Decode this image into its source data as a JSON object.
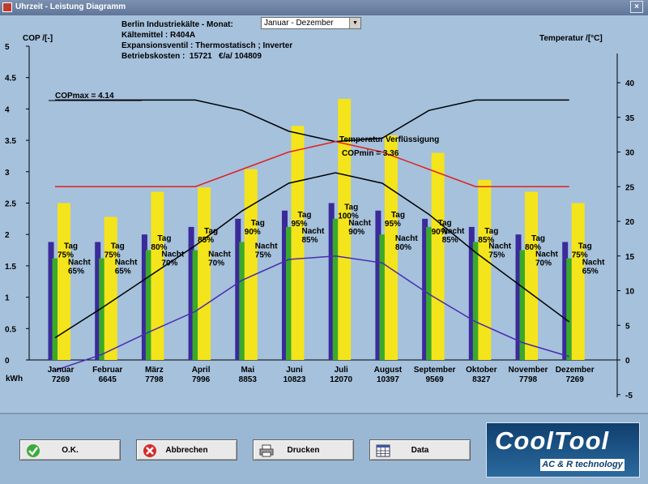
{
  "window": {
    "title": "Uhrzeit - Leistung Diagramm",
    "close": "×"
  },
  "info": {
    "line1": "Berlin Industriekälte - Monat:",
    "line2": "Kältemittel : R404A",
    "line3": "Expansionsventil : Thermostatisch ; Inverter",
    "line4": "Betriebskosten :  15721   €/a/ 104809"
  },
  "month_select": {
    "value": "Januar - Dezember"
  },
  "axes": {
    "left_title": "COP /[-]",
    "right_title": "Temperatur /[°C]",
    "kwh_label": "kWh"
  },
  "annotations": {
    "copmax": "COPmax =  4.14",
    "copmin": "COPmin =  3.36",
    "temp_cond": "Temperatur Verflüssigung"
  },
  "buttons": {
    "ok": "O.K.",
    "cancel": "Abbrechen",
    "print": "Drucken",
    "data": "Data"
  },
  "logo": {
    "title": "CoolTool",
    "subtitle": "AC & R technology"
  },
  "colors": {
    "purple": "#3a2a9a",
    "green": "#3aaa2a",
    "yellow": "#f4e41c",
    "red_line": "#e02020",
    "black_line": "#000000",
    "blue_line": "#4a2ab0"
  },
  "chart_data": {
    "type": "bar",
    "categories": [
      "Januar",
      "Februar",
      "März",
      "April",
      "Mai",
      "Juni",
      "Juli",
      "August",
      "September",
      "Oktober",
      "November",
      "Dezember"
    ],
    "kwh": [
      "7269",
      "6645",
      "7798",
      "7996",
      "8853",
      "10823",
      "12070",
      "10397",
      "9569",
      "8327",
      "7798",
      "7269"
    ],
    "left_axis": {
      "ticks": [
        "0",
        "0.5",
        "1",
        "1.5",
        "2",
        "2.5",
        "3",
        "3.5",
        "4",
        "4.5",
        "5"
      ],
      "ylim": [
        0,
        5
      ]
    },
    "right_axis": {
      "ticks": [
        "-5",
        "0",
        "5",
        "10",
        "15",
        "20",
        "25",
        "30",
        "35",
        "40"
      ],
      "ylim": [
        -5,
        40
      ]
    },
    "series": [
      {
        "values": [
          1.88,
          1.88,
          2.0,
          2.12,
          2.25,
          2.38,
          2.5,
          2.38,
          2.25,
          2.12,
          2.0,
          1.88
        ]
      },
      {
        "values": [
          1.62,
          1.62,
          1.75,
          1.75,
          1.88,
          2.12,
          2.25,
          2.0,
          2.12,
          1.88,
          1.75,
          1.62
        ]
      },
      {
        "values": [
          2.5,
          2.28,
          2.68,
          2.75,
          3.04,
          3.73,
          4.16,
          3.58,
          3.3,
          2.87,
          2.68,
          2.5
        ]
      }
    ],
    "tag_labels": [
      [
        "Tag",
        "75%"
      ],
      [
        "Tag",
        "75%"
      ],
      [
        "Tag",
        "80%"
      ],
      [
        "Tag",
        "85%"
      ],
      [
        "Tag",
        "90%"
      ],
      [
        "Tag",
        "95%"
      ],
      [
        "Tag",
        "100%"
      ],
      [
        "Tag",
        "95%"
      ],
      [
        "Tag",
        "90%"
      ],
      [
        "Tag",
        "85%"
      ],
      [
        "Tag",
        "80%"
      ],
      [
        "Tag",
        "75%"
      ]
    ],
    "nacht_labels": [
      [
        "Nacht",
        "65%"
      ],
      [
        "Nacht",
        "65%"
      ],
      [
        "Nacht",
        "70%"
      ],
      [
        "Nacht",
        "70%"
      ],
      [
        "Nacht",
        "75%"
      ],
      [
        "Nacht",
        "85%"
      ],
      [
        "Nacht",
        "90%"
      ],
      [
        "Nacht",
        "80%"
      ],
      [
        "Nacht",
        "85%"
      ],
      [
        "Nacht",
        "75%"
      ],
      [
        "Nacht",
        "70%"
      ],
      [
        "Nacht",
        "65%"
      ]
    ],
    "lines": [
      {
        "axis": "right",
        "values": [
          37.5,
          37.5,
          37.5,
          37.5,
          36.0,
          33.0,
          31.5,
          32.0,
          36.0,
          37.5,
          37.5,
          37.5
        ]
      },
      {
        "axis": "right",
        "values": [
          25,
          25,
          25,
          25,
          27.5,
          30.0,
          31.5,
          30.0,
          27.5,
          25,
          25,
          25
        ]
      },
      {
        "axis": "right",
        "values": [
          3.2,
          7.5,
          12.0,
          16.5,
          21.5,
          25.5,
          27.0,
          25.5,
          21.0,
          15.5,
          10.5,
          5.5
        ]
      },
      {
        "axis": "right",
        "values": [
          -1.5,
          0.8,
          4.0,
          7.0,
          11.5,
          14.5,
          15.0,
          14.0,
          9.5,
          5.5,
          2.5,
          0.5
        ]
      }
    ],
    "grid": false,
    "legend": "none"
  }
}
